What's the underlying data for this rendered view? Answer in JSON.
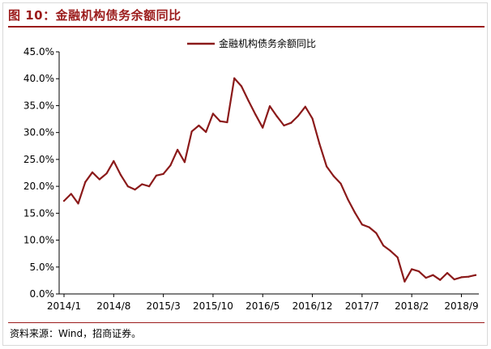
{
  "figure": {
    "title": "图 10：金融机构债务余额同比",
    "source": "资料来源：Wind，招商证券。"
  },
  "colors": {
    "accent": "#9b1b1b",
    "series": "#8b1a1a",
    "axis": "#000000"
  },
  "chart_data": {
    "type": "line",
    "title": "",
    "xlabel": "",
    "ylabel": "",
    "ylim": [
      0,
      45
    ],
    "y_unit": "percent",
    "grid": false,
    "legend_position": "top-center",
    "y_ticks": [
      "45.0%",
      "40.0%",
      "35.0%",
      "30.0%",
      "25.0%",
      "20.0%",
      "15.0%",
      "10.0%",
      "5.0%",
      "0.0%"
    ],
    "x_tick_labels": [
      "2014/1",
      "2014/8",
      "2015/3",
      "2015/10",
      "2016/5",
      "2016/12",
      "2017/7",
      "2018/2",
      "2018/9"
    ],
    "x": [
      "2014/1",
      "2014/2",
      "2014/3",
      "2014/4",
      "2014/5",
      "2014/6",
      "2014/7",
      "2014/8",
      "2014/9",
      "2014/10",
      "2014/11",
      "2014/12",
      "2015/1",
      "2015/2",
      "2015/3",
      "2015/4",
      "2015/5",
      "2015/6",
      "2015/7",
      "2015/8",
      "2015/9",
      "2015/10",
      "2015/11",
      "2015/12",
      "2016/1",
      "2016/2",
      "2016/3",
      "2016/4",
      "2016/5",
      "2016/6",
      "2016/7",
      "2016/8",
      "2016/9",
      "2016/10",
      "2016/11",
      "2016/12",
      "2017/1",
      "2017/2",
      "2017/3",
      "2017/4",
      "2017/5",
      "2017/6",
      "2017/7",
      "2017/8",
      "2017/9",
      "2017/10",
      "2017/11",
      "2017/12",
      "2018/1",
      "2018/2",
      "2018/3",
      "2018/4",
      "2018/5",
      "2018/6",
      "2018/7",
      "2018/8",
      "2018/9",
      "2018/10",
      "2018/11"
    ],
    "series": [
      {
        "name": "金融机构债务余额同比",
        "values": [
          17.3,
          18.6,
          16.8,
          20.8,
          22.6,
          21.3,
          22.4,
          24.7,
          22.1,
          20.0,
          19.4,
          20.4,
          20.0,
          22.0,
          22.3,
          23.9,
          26.8,
          24.5,
          30.2,
          31.3,
          30.1,
          33.5,
          32.1,
          31.9,
          40.1,
          38.6,
          35.9,
          33.3,
          30.9,
          34.9,
          33.0,
          31.3,
          31.8,
          33.1,
          34.8,
          32.6,
          27.9,
          23.7,
          21.9,
          20.5,
          17.6,
          15.1,
          12.9,
          12.4,
          11.3,
          9.0,
          8.0,
          6.8,
          2.3,
          4.6,
          4.2,
          3.0,
          3.5,
          2.6,
          3.9,
          2.7,
          3.1,
          3.2,
          3.5
        ]
      }
    ]
  }
}
